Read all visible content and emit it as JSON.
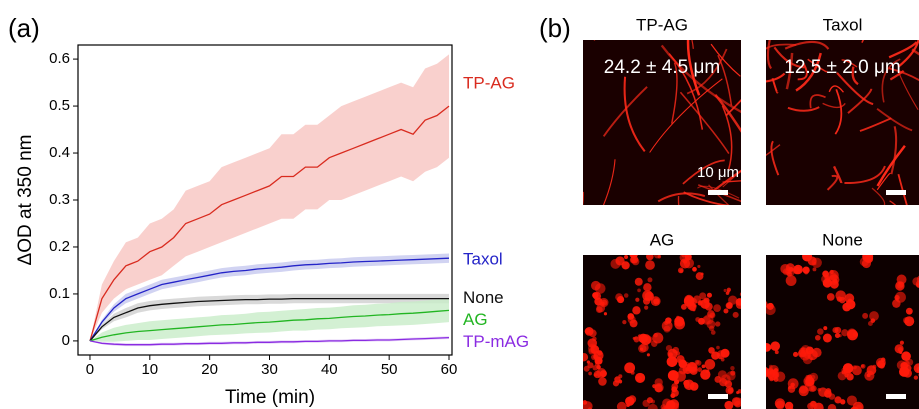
{
  "chart_data": {
    "type": "line",
    "panel_label": "(a)",
    "x_label": "Time (min)",
    "y_label": "ΔOD at 350 nm",
    "x": [
      0,
      2,
      4,
      6,
      8,
      10,
      12,
      14,
      16,
      18,
      20,
      22,
      24,
      26,
      28,
      30,
      32,
      34,
      36,
      38,
      40,
      42,
      44,
      46,
      48,
      50,
      52,
      54,
      56,
      58,
      60
    ],
    "xlim": [
      -2,
      60.5
    ],
    "xticks": [
      0,
      10,
      20,
      30,
      40,
      50,
      60
    ],
    "ylim": [
      -0.03,
      0.63
    ],
    "yticks": [
      0,
      0.1,
      0.2,
      0.3,
      0.4,
      0.5,
      0.6
    ],
    "series": [
      {
        "name": "TP-AG",
        "color": "#d92b1f",
        "band_color": "#f8c4c0",
        "values": [
          0,
          0.09,
          0.13,
          0.16,
          0.17,
          0.19,
          0.2,
          0.22,
          0.25,
          0.26,
          0.27,
          0.29,
          0.3,
          0.31,
          0.32,
          0.33,
          0.35,
          0.35,
          0.37,
          0.37,
          0.39,
          0.4,
          0.41,
          0.42,
          0.43,
          0.44,
          0.45,
          0.44,
          0.47,
          0.48,
          0.5
        ],
        "errors": [
          0,
          0.03,
          0.04,
          0.05,
          0.05,
          0.06,
          0.06,
          0.06,
          0.07,
          0.07,
          0.07,
          0.08,
          0.08,
          0.08,
          0.08,
          0.08,
          0.09,
          0.09,
          0.09,
          0.09,
          0.09,
          0.1,
          0.1,
          0.1,
          0.1,
          0.1,
          0.1,
          0.1,
          0.11,
          0.11,
          0.11
        ]
      },
      {
        "name": "Taxol",
        "color": "#2424c8",
        "band_color": "#c6c8ef",
        "values": [
          0,
          0.04,
          0.07,
          0.09,
          0.1,
          0.11,
          0.12,
          0.125,
          0.13,
          0.135,
          0.14,
          0.145,
          0.148,
          0.15,
          0.153,
          0.155,
          0.157,
          0.16,
          0.162,
          0.163,
          0.165,
          0.166,
          0.168,
          0.169,
          0.17,
          0.171,
          0.172,
          0.173,
          0.174,
          0.175,
          0.176
        ],
        "errors": [
          0,
          0.005,
          0.008,
          0.01,
          0.01,
          0.01,
          0.01,
          0.01,
          0.01,
          0.01,
          0.01,
          0.01,
          0.01,
          0.01,
          0.01,
          0.01,
          0.01,
          0.01,
          0.01,
          0.01,
          0.01,
          0.01,
          0.01,
          0.01,
          0.01,
          0.01,
          0.01,
          0.01,
          0.01,
          0.01,
          0.01
        ]
      },
      {
        "name": "None",
        "color": "#111111",
        "band_color": "#cfcfcf",
        "values": [
          0,
          0.03,
          0.05,
          0.06,
          0.07,
          0.075,
          0.078,
          0.08,
          0.082,
          0.084,
          0.085,
          0.086,
          0.087,
          0.088,
          0.088,
          0.089,
          0.089,
          0.09,
          0.09,
          0.09,
          0.09,
          0.09,
          0.09,
          0.09,
          0.09,
          0.09,
          0.09,
          0.09,
          0.09,
          0.09,
          0.09
        ],
        "errors": [
          0,
          0.005,
          0.008,
          0.01,
          0.01,
          0.01,
          0.01,
          0.01,
          0.01,
          0.01,
          0.01,
          0.01,
          0.01,
          0.01,
          0.01,
          0.01,
          0.01,
          0.01,
          0.01,
          0.01,
          0.01,
          0.01,
          0.01,
          0.01,
          0.01,
          0.01,
          0.01,
          0.01,
          0.01,
          0.01,
          0.01
        ]
      },
      {
        "name": "AG",
        "color": "#22b522",
        "band_color": "#c8ecc8",
        "values": [
          0,
          0.008,
          0.013,
          0.017,
          0.02,
          0.022,
          0.024,
          0.026,
          0.028,
          0.03,
          0.032,
          0.034,
          0.035,
          0.037,
          0.039,
          0.04,
          0.042,
          0.044,
          0.045,
          0.047,
          0.048,
          0.05,
          0.052,
          0.053,
          0.055,
          0.056,
          0.058,
          0.059,
          0.061,
          0.063,
          0.065
        ],
        "errors": [
          0,
          0.01,
          0.015,
          0.017,
          0.018,
          0.02,
          0.02,
          0.02,
          0.02,
          0.02,
          0.02,
          0.021,
          0.021,
          0.021,
          0.022,
          0.022,
          0.022,
          0.022,
          0.023,
          0.023,
          0.023,
          0.023,
          0.024,
          0.024,
          0.024,
          0.024,
          0.025,
          0.025,
          0.025,
          0.025,
          0.025
        ]
      },
      {
        "name": "TP-mAG",
        "color": "#8a2be2",
        "band_color": "#e0c8f5",
        "values": [
          0,
          -0.005,
          -0.007,
          -0.008,
          -0.008,
          -0.008,
          -0.007,
          -0.007,
          -0.006,
          -0.006,
          -0.005,
          -0.005,
          -0.004,
          -0.004,
          -0.003,
          -0.003,
          -0.002,
          -0.002,
          -0.001,
          -0.001,
          0,
          0,
          0.001,
          0.001,
          0.002,
          0.002,
          0.003,
          0.004,
          0.005,
          0.006,
          0.007
        ],
        "errors": [
          0,
          0.002,
          0.003,
          0.003,
          0.003,
          0.003,
          0.003,
          0.003,
          0.003,
          0.003,
          0.003,
          0.003,
          0.003,
          0.003,
          0.003,
          0.003,
          0.003,
          0.003,
          0.003,
          0.003,
          0.003,
          0.003,
          0.003,
          0.003,
          0.003,
          0.003,
          0.003,
          0.003,
          0.003,
          0.003,
          0.003
        ]
      }
    ]
  },
  "panel_b": {
    "panel_label": "(b)",
    "images": [
      {
        "title": "TP-AG",
        "measure": "24.2 ± 4.5 μm",
        "scale": "10 μm"
      },
      {
        "title": "Taxol",
        "measure": "12.5 ± 2.0 μm"
      },
      {
        "title": "AG"
      },
      {
        "title": "None"
      }
    ]
  }
}
